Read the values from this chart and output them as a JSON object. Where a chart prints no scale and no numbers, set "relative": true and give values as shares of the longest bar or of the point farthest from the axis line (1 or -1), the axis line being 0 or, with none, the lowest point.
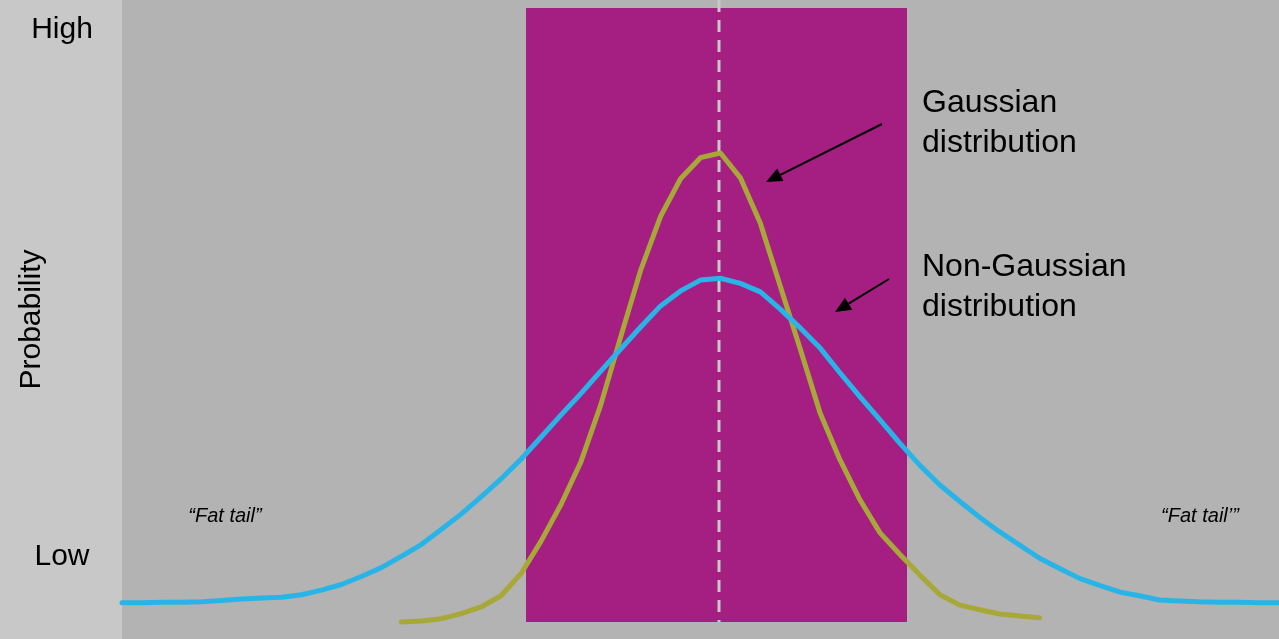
{
  "chart_data": {
    "type": "line",
    "relative": true,
    "ylabel": "Probability",
    "line_style": "solid",
    "categories": [
      null,
      null,
      null,
      null,
      null,
      null,
      null,
      null,
      null,
      null,
      null,
      null,
      null,
      null,
      null,
      null,
      null,
      null,
      null,
      null,
      null,
      null,
      null,
      null,
      null,
      null,
      null,
      null,
      null,
      null,
      null,
      null,
      null,
      null,
      null,
      null,
      null,
      null,
      null,
      null,
      null,
      null,
      null,
      null,
      null,
      null,
      null,
      null,
      null,
      null,
      null,
      null,
      null,
      null,
      null,
      null,
      null,
      null,
      null
    ],
    "series": [
      {
        "name": "Gaussian distribution",
        "color": "#a8a838",
        "values": [
          null,
          null,
          null,
          null,
          null,
          null,
          null,
          null,
          null,
          null,
          null,
          null,
          null,
          null,
          0,
          0.002,
          0.007,
          0.018,
          0.032,
          0.056,
          0.103,
          0.172,
          0.25,
          0.341,
          0.463,
          0.608,
          0.75,
          0.865,
          0.945,
          0.99,
          1,
          0.947,
          0.85,
          0.716,
          0.582,
          0.445,
          0.345,
          0.26,
          0.19,
          0.144,
          0.1,
          0.058,
          0.036,
          0.026,
          0.017,
          0.013,
          0.009,
          null,
          null,
          null,
          null,
          null,
          null,
          null,
          null,
          null,
          null,
          null,
          null
        ]
      },
      {
        "name": "Non-Gaussian distribution",
        "color": "#29b4e8",
        "values": [
          0.041,
          0.041,
          0.042,
          0.042,
          0.043,
          0.046,
          0.049,
          0.051,
          0.053,
          0.058,
          0.068,
          0.08,
          0.097,
          0.116,
          0.14,
          0.165,
          0.197,
          0.23,
          0.267,
          0.305,
          0.347,
          0.394,
          0.441,
          0.487,
          0.535,
          0.582,
          0.629,
          0.674,
          0.706,
          0.729,
          0.733,
          0.722,
          0.704,
          0.667,
          0.627,
          0.584,
          0.531,
          0.48,
          0.431,
          0.381,
          0.334,
          0.292,
          0.257,
          0.223,
          0.192,
          0.164,
          0.136,
          0.114,
          0.093,
          0.078,
          0.064,
          0.056,
          0.047,
          0.045,
          0.043,
          0.042,
          0.042,
          0.041,
          0.041
        ]
      }
    ],
    "annotations": [
      "High",
      "Low",
      "“Fat tail”",
      "“Fat tail’”"
    ]
  }
}
